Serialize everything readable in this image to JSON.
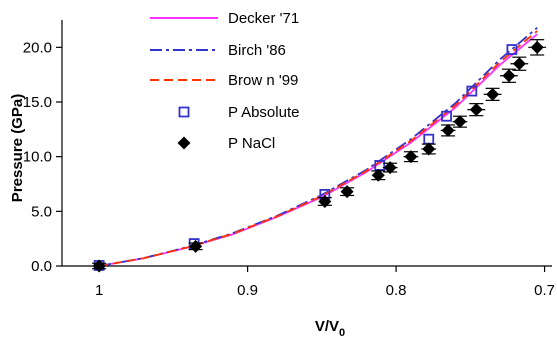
{
  "chart_data": {
    "type": "line",
    "xlabel": "V/V",
    "xlabel_subscript": "0",
    "ylabel": "Pressure (GPa)",
    "xlim": [
      1.025,
      0.695
    ],
    "ylim": [
      0,
      22.5
    ],
    "x_reversed": true,
    "x_ticks": [
      1.0,
      0.9,
      0.8,
      0.7
    ],
    "x_tick_labels": [
      "1",
      "0.9",
      "0.8",
      "0.7"
    ],
    "y_ticks": [
      0,
      5,
      10,
      15,
      20
    ],
    "y_tick_labels": [
      "0.0",
      "5.0",
      "10.0",
      "15.0",
      "20.0"
    ],
    "grid": false,
    "legend_position": "top-left",
    "series": [
      {
        "name": "Decker '71",
        "kind": "line",
        "style": "solid",
        "color": "#ff33ff",
        "x": [
          1.0,
          0.97,
          0.94,
          0.91,
          0.88,
          0.85,
          0.82,
          0.79,
          0.76,
          0.73,
          0.705
        ],
        "y": [
          0.0,
          0.7,
          1.7,
          2.9,
          4.5,
          6.3,
          8.6,
          11.3,
          14.5,
          18.4,
          21.2
        ]
      },
      {
        "name": "Birch '86",
        "kind": "line",
        "style": "dashdot",
        "color": "#3333cc",
        "x": [
          1.0,
          0.97,
          0.94,
          0.91,
          0.88,
          0.85,
          0.82,
          0.79,
          0.76,
          0.73,
          0.705
        ],
        "y": [
          0.0,
          0.72,
          1.75,
          3.0,
          4.6,
          6.5,
          8.8,
          11.6,
          14.9,
          18.9,
          21.8
        ]
      },
      {
        "name": "Brow n '99",
        "kind": "line",
        "style": "dashed",
        "color": "#ff3300",
        "x": [
          1.0,
          0.97,
          0.94,
          0.91,
          0.88,
          0.85,
          0.82,
          0.79,
          0.76,
          0.73,
          0.705
        ],
        "y": [
          0.0,
          0.71,
          1.72,
          2.95,
          4.55,
          6.4,
          8.7,
          11.45,
          14.7,
          18.65,
          21.5
        ]
      },
      {
        "name": "P Absolute",
        "kind": "marker",
        "marker": "open-square",
        "color": "#3333cc",
        "x": [
          1.0,
          0.936,
          0.848,
          0.811,
          0.778,
          0.766,
          0.749,
          0.722
        ],
        "y": [
          0.05,
          2.05,
          6.55,
          9.2,
          11.6,
          13.7,
          16.0,
          19.8
        ]
      },
      {
        "name": "P NaCl",
        "kind": "marker",
        "marker": "filled-diamond",
        "color": "#000000",
        "x": [
          1.0,
          0.935,
          0.848,
          0.833,
          0.812,
          0.804,
          0.79,
          0.778,
          0.765,
          0.757,
          0.746,
          0.735,
          0.724,
          0.717,
          0.705
        ],
        "y": [
          0.0,
          1.8,
          5.9,
          6.8,
          8.3,
          9.0,
          10.0,
          10.7,
          12.4,
          13.2,
          14.3,
          15.7,
          17.4,
          18.5,
          20.0
        ],
        "error_x": [
          0.0,
          0.004,
          0.004,
          0.004,
          0.004,
          0.005,
          0.005,
          0.005,
          0.005,
          0.005,
          0.006,
          0.006,
          0.006,
          0.006,
          0.006
        ],
        "error_y": [
          0.25,
          0.3,
          0.35,
          0.35,
          0.4,
          0.4,
          0.45,
          0.45,
          0.5,
          0.5,
          0.55,
          0.55,
          0.6,
          0.6,
          0.7
        ]
      }
    ]
  }
}
